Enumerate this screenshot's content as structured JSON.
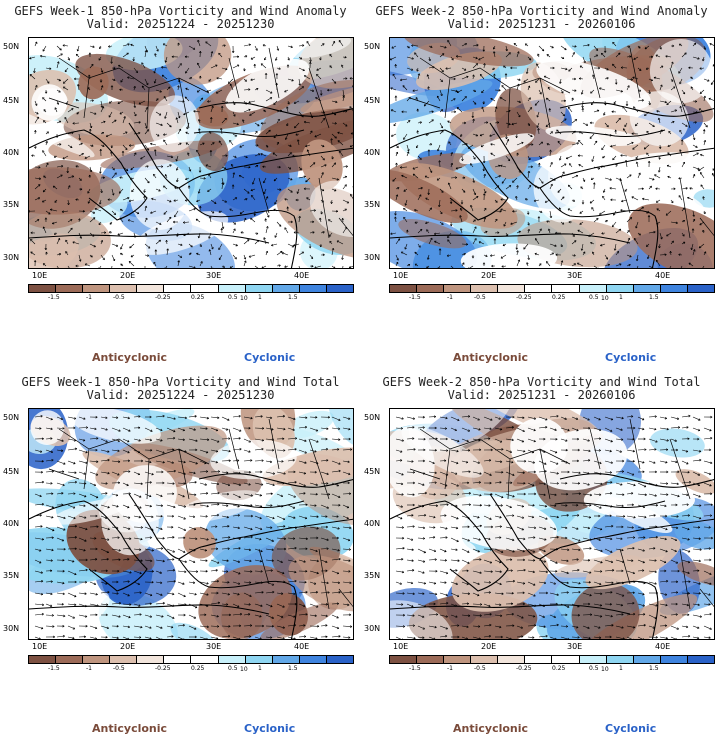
{
  "panels": [
    {
      "title": "GEFS Week-1 850-hPa Vorticity and Wind Anomaly",
      "valid": "Valid: 20251224 - 20251230"
    },
    {
      "title": "GEFS Week-2 850-hPa Vorticity and Wind Anomaly",
      "valid": "Valid: 20251231 - 20260106"
    },
    {
      "title": "GEFS Week-1 850-hPa Vorticity and Wind Total",
      "valid": "Valid: 20251224 - 20251230"
    },
    {
      "title": "GEFS Week-2 850-hPa Vorticity and Wind Total",
      "valid": "Valid: 20251231 - 20260106"
    }
  ],
  "lat_labels": [
    "50N",
    "45N",
    "40N",
    "35N",
    "30N"
  ],
  "lon_labels": [
    "10E",
    "20E",
    "30E",
    "40E"
  ],
  "colorbar": {
    "labels": [
      "-1.5",
      "-1",
      "-0.5",
      "-0.25",
      "0.25",
      "0.5",
      "1",
      "1.5"
    ],
    "unit_mark": "10",
    "colors": [
      "#7d5142",
      "#9c6b58",
      "#bf957f",
      "#dcbfae",
      "#f2e5dc",
      "#ffffff",
      "#ffffff",
      "#c8f0fa",
      "#8fd6f2",
      "#62a8e8",
      "#3f84df",
      "#2a62c8"
    ]
  },
  "legend": {
    "anticyclonic": "Anticyclonic",
    "cyclonic": "Cyclonic"
  },
  "colors": {
    "anticyclonic": "#7a4b3a",
    "cyclonic": "#2a62c8",
    "land_line": "#000000"
  }
}
